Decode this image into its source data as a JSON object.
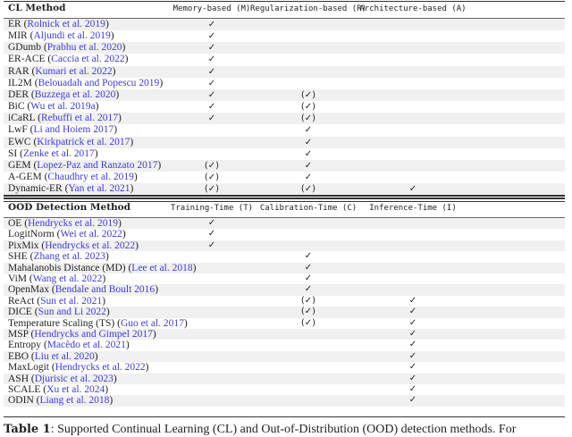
{
  "cl": {
    "header": {
      "method": "CL Method",
      "cols": [
        "Memory-based (M)",
        "Regularization-based (R)",
        "Architecture-based (A)"
      ]
    },
    "rows": [
      {
        "name": "ER",
        "cite": "Rolnick et al. 2019",
        "marks": [
          "check",
          "",
          ""
        ]
      },
      {
        "name": "MIR",
        "cite": "Aljundi et al. 2019",
        "marks": [
          "check",
          "",
          ""
        ]
      },
      {
        "name": "GDumb",
        "cite": "Prabhu et al. 2020",
        "marks": [
          "check",
          "",
          ""
        ]
      },
      {
        "name": "ER-ACE",
        "cite": "Caccia et al. 2022",
        "marks": [
          "check",
          "",
          ""
        ]
      },
      {
        "name": "RAR",
        "cite": "Kumari et al. 2022",
        "marks": [
          "check",
          "",
          ""
        ]
      },
      {
        "name": "IL2M",
        "cite": "Belouadah and Popescu 2019",
        "marks": [
          "check",
          "",
          ""
        ]
      },
      {
        "name": "DER",
        "cite": "Buzzega et al. 2020",
        "marks": [
          "check",
          "paren",
          ""
        ]
      },
      {
        "name": "BiC",
        "cite": "Wu et al. 2019a",
        "marks": [
          "check",
          "paren",
          ""
        ]
      },
      {
        "name": "iCaRL",
        "cite": "Rebuffi et al. 2017",
        "marks": [
          "check",
          "paren",
          ""
        ]
      },
      {
        "name": "LwF",
        "cite": "Li and Hoiem 2017",
        "marks": [
          "",
          "check",
          ""
        ]
      },
      {
        "name": "EWC",
        "cite": "Kirkpatrick et al. 2017",
        "marks": [
          "",
          "check",
          ""
        ]
      },
      {
        "name": "SI",
        "cite": "Zenke et al. 2017",
        "marks": [
          "",
          "check",
          ""
        ]
      },
      {
        "name": "GEM",
        "cite": "Lopez-Paz and Ranzato 2017",
        "marks": [
          "paren",
          "check",
          ""
        ]
      },
      {
        "name": "A-GEM",
        "cite": "Chaudhry et al. 2019",
        "marks": [
          "paren",
          "check",
          ""
        ]
      },
      {
        "name": "Dynamic-ER",
        "cite": "Yan et al. 2021",
        "marks": [
          "paren",
          "paren",
          "check"
        ]
      }
    ]
  },
  "ood": {
    "header": {
      "method": "OOD Detection Method",
      "cols": [
        "Training-Time (T)",
        "Calibration-Time (C)",
        "Inference-Time (I)"
      ]
    },
    "rows": [
      {
        "name": "OE",
        "cite": "Hendrycks et al. 2019",
        "marks": [
          "check",
          "",
          ""
        ]
      },
      {
        "name": "LogitNorm",
        "cite": "Wei et al. 2022",
        "marks": [
          "check",
          "",
          ""
        ]
      },
      {
        "name": "PixMix",
        "cite": "Hendrycks et al. 2022",
        "marks": [
          "check",
          "",
          ""
        ]
      },
      {
        "name": "SHE",
        "cite": "Zhang et al. 2023",
        "marks": [
          "",
          "check",
          ""
        ]
      },
      {
        "name": "Mahalanobis Distance (MD)",
        "cite": "Lee et al. 2018",
        "marks": [
          "",
          "check",
          ""
        ]
      },
      {
        "name": "ViM",
        "cite": "Wang et al. 2022",
        "marks": [
          "",
          "check",
          ""
        ]
      },
      {
        "name": "OpenMax",
        "cite": "Bendale and Boult 2016",
        "marks": [
          "",
          "check",
          ""
        ]
      },
      {
        "name": "ReAct",
        "cite": "Sun et al. 2021",
        "marks": [
          "",
          "paren",
          "check"
        ]
      },
      {
        "name": "DICE",
        "cite": "Sun and Li 2022",
        "marks": [
          "",
          "paren",
          "check"
        ]
      },
      {
        "name": "Temperature Scaling (TS)",
        "cite": "Guo et al. 2017",
        "marks": [
          "",
          "paren",
          "check"
        ]
      },
      {
        "name": "MSP",
        "cite": "Hendrycks and Gimpel 2017",
        "marks": [
          "",
          "",
          "check"
        ]
      },
      {
        "name": "Entropy",
        "cite": "Macêdo et al. 2021",
        "marks": [
          "",
          "",
          "check"
        ]
      },
      {
        "name": "EBO",
        "cite": "Liu et al. 2020",
        "marks": [
          "",
          "",
          "check"
        ]
      },
      {
        "name": "MaxLogit",
        "cite": "Hendrycks et al. 2022",
        "marks": [
          "",
          "",
          "check"
        ]
      },
      {
        "name": "ASH",
        "cite": "Djurisic et al. 2023",
        "marks": [
          "",
          "",
          "check"
        ]
      },
      {
        "name": "SCALE",
        "cite": "Xu et al. 2024",
        "marks": [
          "",
          "",
          "check"
        ]
      },
      {
        "name": "ODIN",
        "cite": "Liang et al. 2018",
        "marks": [
          "",
          "",
          "check"
        ]
      }
    ]
  },
  "caption": {
    "label": "Table 1",
    "text": ": Supported Continual Learning (CL) and Out-of-Distribution (OOD) detection methods. For"
  }
}
